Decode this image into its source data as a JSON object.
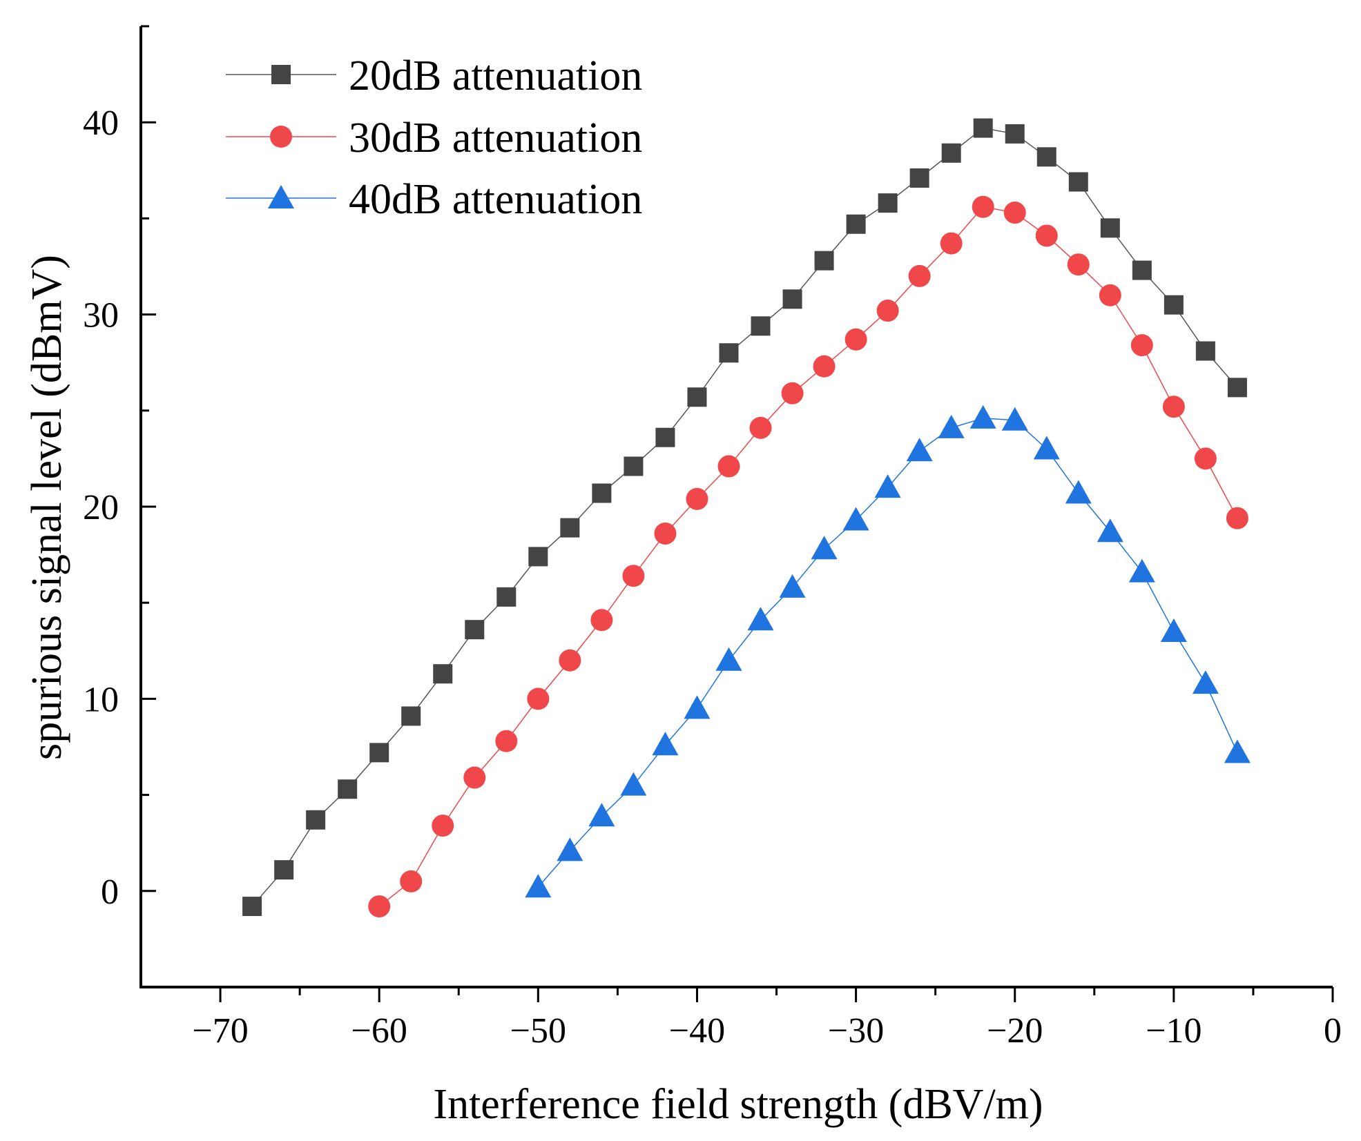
{
  "chart_data": {
    "type": "line",
    "title": "",
    "xlabel": "Interference field strength (dBV/m)",
    "ylabel": "spurious signal level (dBmV)",
    "xlim": [
      -75,
      0
    ],
    "ylim": [
      -5,
      45
    ],
    "x_ticks": [
      -70,
      -60,
      -50,
      -40,
      -30,
      -20,
      -10,
      0
    ],
    "x_tick_labels": [
      "−70",
      "−60",
      "−50",
      "−40",
      "−30",
      "−20",
      "−10",
      "0"
    ],
    "y_ticks": [
      0,
      10,
      20,
      30,
      40
    ],
    "y_tick_labels": [
      "0",
      "10",
      "20",
      "30",
      "40"
    ],
    "grid": false,
    "legend_position": "top-left",
    "series": [
      {
        "name": "20dB attenuation",
        "marker": "square",
        "color": "#444444",
        "line_color": "#555555",
        "x": [
          -68,
          -66,
          -64,
          -62,
          -60,
          -58,
          -56,
          -54,
          -52,
          -50,
          -48,
          -46,
          -44,
          -42,
          -40,
          -38,
          -36,
          -34,
          -32,
          -30,
          -28,
          -26,
          -24,
          -22,
          -20,
          -18,
          -16,
          -14,
          -12,
          -10,
          -8,
          -6
        ],
        "values": [
          -0.8,
          1.1,
          3.7,
          5.3,
          7.2,
          9.1,
          11.3,
          13.6,
          15.3,
          17.4,
          18.9,
          20.7,
          22.1,
          23.6,
          25.7,
          28.0,
          29.4,
          30.8,
          32.8,
          34.7,
          35.8,
          37.1,
          38.4,
          39.7,
          39.4,
          38.2,
          36.9,
          34.5,
          32.3,
          30.5,
          28.1,
          26.2
        ]
      },
      {
        "name": "30dB attenuation",
        "marker": "circle",
        "color": "#f0474a",
        "line_color": "#f0474a",
        "x": [
          -60,
          -58,
          -56,
          -54,
          -52,
          -50,
          -48,
          -46,
          -44,
          -42,
          -40,
          -38,
          -36,
          -34,
          -32,
          -30,
          -28,
          -26,
          -24,
          -22,
          -20,
          -18,
          -16,
          -14,
          -12,
          -10,
          -8,
          -6
        ],
        "values": [
          -0.8,
          0.5,
          3.4,
          5.9,
          7.8,
          10.0,
          12.0,
          14.1,
          16.4,
          18.6,
          20.4,
          22.1,
          24.1,
          25.9,
          27.3,
          28.7,
          30.2,
          32.0,
          33.7,
          35.6,
          35.3,
          34.1,
          32.6,
          31.0,
          28.4,
          25.2,
          22.5,
          19.4
        ]
      },
      {
        "name": "40dB attenuation",
        "marker": "triangle",
        "color": "#1f74e0",
        "line_color": "#1f74e0",
        "x": [
          -50,
          -48,
          -46,
          -44,
          -42,
          -40,
          -38,
          -36,
          -34,
          -32,
          -30,
          -28,
          -26,
          -24,
          -22,
          -20,
          -18,
          -16,
          -14,
          -12,
          -10,
          -8,
          -6
        ],
        "values": [
          0.2,
          2.1,
          3.9,
          5.5,
          7.6,
          9.5,
          12.0,
          14.1,
          15.8,
          17.8,
          19.3,
          21.0,
          22.9,
          24.1,
          24.6,
          24.5,
          23.0,
          20.7,
          18.7,
          16.6,
          13.5,
          10.8,
          7.2
        ]
      }
    ]
  }
}
